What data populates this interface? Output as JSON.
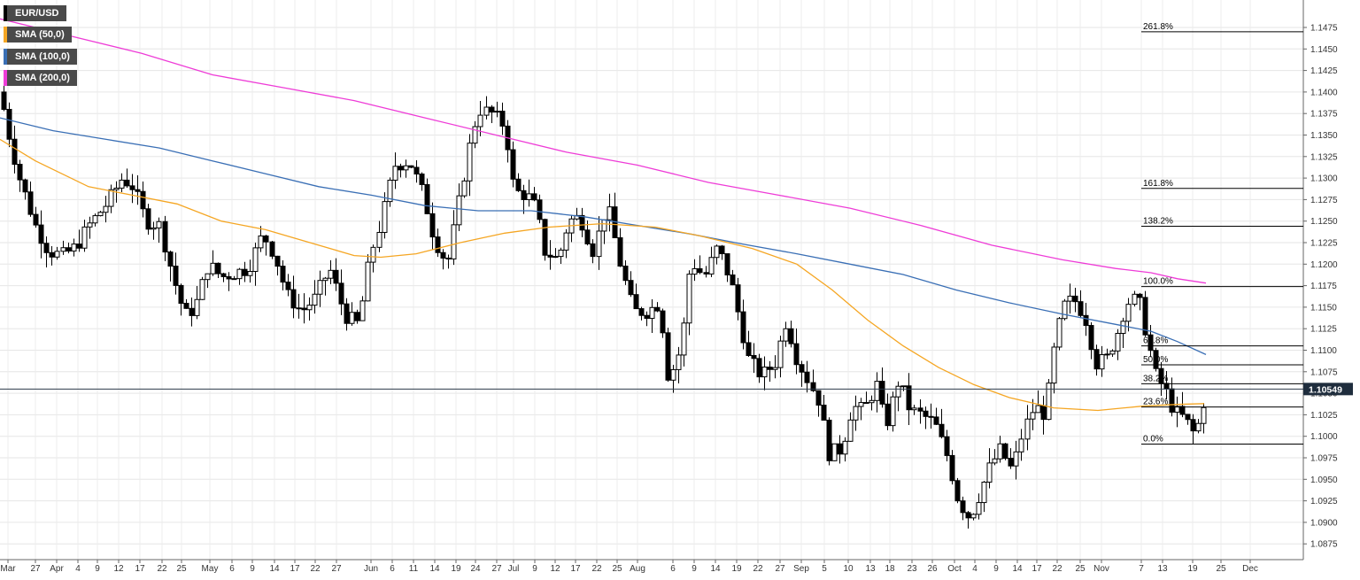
{
  "chart_data": {
    "type": "candlestick",
    "symbol": "EUR/USD",
    "ylim": [
      1.0855,
      1.149
    ],
    "y_ticks": [
      "1.1475",
      "1.1450",
      "1.1425",
      "1.1400",
      "1.1375",
      "1.1350",
      "1.1325",
      "1.1300",
      "1.1275",
      "1.1250",
      "1.1225",
      "1.1200",
      "1.1175",
      "1.1150",
      "1.1125",
      "1.1100",
      "1.1075",
      "1.1050",
      "1.1025",
      "1.1000",
      "1.0975",
      "1.0950",
      "1.0925",
      "1.0900",
      "1.0875"
    ],
    "x_ticks": [
      "Mar",
      "27",
      "Apr",
      "4",
      "9",
      "12",
      "17",
      "22",
      "25",
      "May",
      "6",
      "9",
      "14",
      "17",
      "22",
      "27",
      "Jun",
      "6",
      "11",
      "14",
      "19",
      "24",
      "27",
      "Jul",
      "9",
      "12",
      "17",
      "22",
      "25",
      "Aug",
      "6",
      "9",
      "14",
      "19",
      "22",
      "27",
      "Sep",
      "5",
      "10",
      "13",
      "18",
      "23",
      "26",
      "Oct",
      "4",
      "9",
      "14",
      "17",
      "22",
      "25",
      "Nov",
      "7",
      "13",
      "19",
      "25",
      "Dec"
    ],
    "last_price": "1.10549",
    "last_price_value": 1.10549,
    "legend": [
      {
        "label": "EUR/USD",
        "color": "#000000"
      },
      {
        "label": "SMA (50,0)",
        "color": "#f5a623"
      },
      {
        "label": "SMA (100,0)",
        "color": "#3a6fb5"
      },
      {
        "label": "SMA (200,0)",
        "color": "#ee3cd7"
      }
    ],
    "fibonacci": [
      {
        "label": "261.8%",
        "value": 1.147
      },
      {
        "label": "161.8%",
        "value": 1.1288
      },
      {
        "label": "138.2%",
        "value": 1.1244
      },
      {
        "label": "100.0%",
        "value": 1.1174
      },
      {
        "label": "61.8%",
        "value": 1.1105
      },
      {
        "label": "50.0%",
        "value": 1.1083
      },
      {
        "label": "38.2%",
        "value": 1.1061
      },
      {
        "label": "23.6%",
        "value": 1.1034
      },
      {
        "label": "0.0%",
        "value": 1.0991
      }
    ],
    "sma_50": [
      [
        0,
        1.1345
      ],
      [
        40,
        1.132
      ],
      [
        100,
        1.129
      ],
      [
        150,
        1.128
      ],
      [
        200,
        1.127
      ],
      [
        250,
        1.125
      ],
      [
        300,
        1.124
      ],
      [
        350,
        1.1225
      ],
      [
        400,
        1.121
      ],
      [
        430,
        1.1208
      ],
      [
        470,
        1.1212
      ],
      [
        520,
        1.1225
      ],
      [
        570,
        1.1236
      ],
      [
        620,
        1.1243
      ],
      [
        680,
        1.1247
      ],
      [
        740,
        1.1243
      ],
      [
        790,
        1.1233
      ],
      [
        850,
        1.1218
      ],
      [
        900,
        1.12
      ],
      [
        940,
        1.117
      ],
      [
        980,
        1.1135
      ],
      [
        1020,
        1.1105
      ],
      [
        1060,
        1.108
      ],
      [
        1100,
        1.106
      ],
      [
        1140,
        1.1045
      ],
      [
        1190,
        1.1033
      ],
      [
        1240,
        1.103
      ],
      [
        1290,
        1.1035
      ],
      [
        1330,
        1.1037
      ],
      [
        1360,
        1.1038
      ]
    ],
    "sma_100": [
      [
        0,
        1.137
      ],
      [
        60,
        1.1355
      ],
      [
        120,
        1.1345
      ],
      [
        180,
        1.1335
      ],
      [
        240,
        1.132
      ],
      [
        300,
        1.1305
      ],
      [
        360,
        1.129
      ],
      [
        420,
        1.128
      ],
      [
        480,
        1.1268
      ],
      [
        540,
        1.1262
      ],
      [
        600,
        1.1262
      ],
      [
        660,
        1.1255
      ],
      [
        720,
        1.1245
      ],
      [
        780,
        1.1235
      ],
      [
        840,
        1.1223
      ],
      [
        900,
        1.1212
      ],
      [
        960,
        1.12
      ],
      [
        1020,
        1.1188
      ],
      [
        1080,
        1.117
      ],
      [
        1140,
        1.1155
      ],
      [
        1200,
        1.1142
      ],
      [
        1260,
        1.113
      ],
      [
        1300,
        1.1122
      ],
      [
        1330,
        1.111
      ],
      [
        1362,
        1.1095
      ]
    ],
    "sma_200": [
      [
        0,
        1.1485
      ],
      [
        80,
        1.1465
      ],
      [
        160,
        1.1445
      ],
      [
        240,
        1.142
      ],
      [
        320,
        1.1405
      ],
      [
        400,
        1.139
      ],
      [
        480,
        1.137
      ],
      [
        560,
        1.135
      ],
      [
        640,
        1.133
      ],
      [
        720,
        1.1315
      ],
      [
        800,
        1.1295
      ],
      [
        880,
        1.128
      ],
      [
        960,
        1.1265
      ],
      [
        1040,
        1.1245
      ],
      [
        1120,
        1.1222
      ],
      [
        1200,
        1.1205
      ],
      [
        1260,
        1.1195
      ],
      [
        1300,
        1.119
      ],
      [
        1330,
        1.1183
      ],
      [
        1362,
        1.1178
      ]
    ]
  }
}
